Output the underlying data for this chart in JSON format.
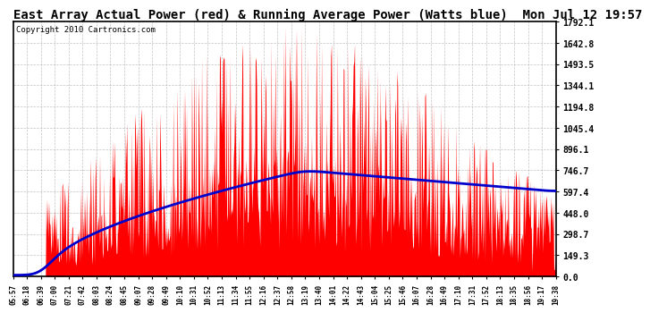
{
  "title": "East Array Actual Power (red) & Running Average Power (Watts blue)  Mon Jul 12 19:57",
  "copyright": "Copyright 2010 Cartronics.com",
  "ymax": 1792.1,
  "ymin": 0.0,
  "yticks": [
    0.0,
    149.3,
    298.7,
    448.0,
    597.4,
    746.7,
    896.1,
    1045.4,
    1194.8,
    1344.1,
    1493.5,
    1642.8,
    1792.1
  ],
  "xtick_labels": [
    "05:57",
    "06:18",
    "06:39",
    "07:00",
    "07:21",
    "07:42",
    "08:03",
    "08:24",
    "08:45",
    "09:07",
    "09:28",
    "09:49",
    "10:10",
    "10:31",
    "10:52",
    "11:13",
    "11:34",
    "11:55",
    "12:16",
    "12:37",
    "12:58",
    "13:19",
    "13:40",
    "14:01",
    "14:22",
    "14:43",
    "15:04",
    "15:25",
    "15:46",
    "16:07",
    "16:28",
    "16:49",
    "17:10",
    "17:31",
    "17:52",
    "18:13",
    "18:35",
    "18:56",
    "19:17",
    "19:38"
  ],
  "background_color": "#ffffff",
  "plot_bg_color": "#ffffff",
  "grid_color": "#aaaaaa",
  "actual_color": "#ff0000",
  "avg_color": "#0000cc",
  "title_fontsize": 10,
  "copyright_fontsize": 6.5
}
